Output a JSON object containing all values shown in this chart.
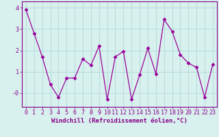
{
  "x": [
    0,
    1,
    2,
    3,
    4,
    5,
    6,
    7,
    8,
    9,
    10,
    11,
    12,
    13,
    14,
    15,
    16,
    17,
    18,
    19,
    20,
    21,
    22,
    23
  ],
  "y": [
    3.9,
    2.8,
    1.7,
    0.4,
    -0.2,
    0.7,
    0.7,
    1.6,
    1.3,
    2.2,
    -0.3,
    1.7,
    1.95,
    -0.3,
    0.85,
    2.1,
    0.9,
    3.45,
    2.9,
    1.8,
    1.4,
    1.2,
    -0.2,
    1.35
  ],
  "line_color": "#990099",
  "marker": "D",
  "markersize": 2.5,
  "linewidth": 0.9,
  "xlabel": "Windchill (Refroidissement éolien,°C)",
  "xlabel_color": "#880088",
  "bg_color": "#d8f0ee",
  "grid_color": "#b8dedd",
  "tick_color": "#880088",
  "axis_color": "#880088",
  "ylim": [
    -0.65,
    4.3
  ],
  "xlim": [
    -0.5,
    23.5
  ],
  "yticks": [
    0,
    1,
    2,
    3,
    4
  ],
  "ytick_labels": [
    "-0",
    "1",
    "2",
    "3",
    "4"
  ],
  "xtick_labels": [
    "0",
    "1",
    "2",
    "3",
    "4",
    "5",
    "6",
    "7",
    "8",
    "9",
    "10",
    "11",
    "12",
    "13",
    "14",
    "15",
    "16",
    "17",
    "18",
    "19",
    "20",
    "21",
    "22",
    "23"
  ],
  "xlabel_fontsize": 6.5,
  "tick_fontsize": 6.0
}
